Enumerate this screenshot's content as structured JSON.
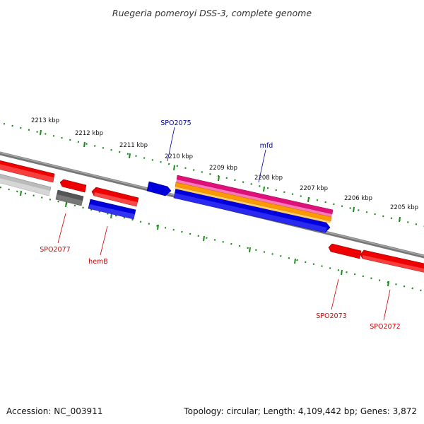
{
  "title": "Ruegeria pomeroyi DSS-3, complete genome",
  "footer": {
    "accession": "Accession: NC_003911",
    "summary": "Topology: circular; Length: 4,109,442 bp; Genes: 3,872"
  },
  "ticks": [
    "2213 kbp",
    "2212 kbp",
    "2211 kbp",
    "2210 kbp",
    "2209 kbp",
    "2208 kbp",
    "2207 kbp",
    "2206 kbp",
    "2205 kbp"
  ],
  "gene_labels": {
    "spo2075": "SPO2075",
    "mfd": "mfd",
    "spo2077": "SPO2077",
    "hemb": "hemB",
    "spo2073": "SPO2073",
    "spo2072": "SPO2072"
  },
  "colors": {
    "forward_gene": "#ee0000",
    "reverse_gene": "#0000dd",
    "pseudo_gene": "#555555",
    "faded_gene": "#bbbbbb",
    "rrna_band_pink": "#e0107a",
    "rrna_band_orange": "#ff9900",
    "backbone": "#777777",
    "tick": "#1a8a1a",
    "label_blue": "#000099",
    "label_red": "#cc0000"
  }
}
